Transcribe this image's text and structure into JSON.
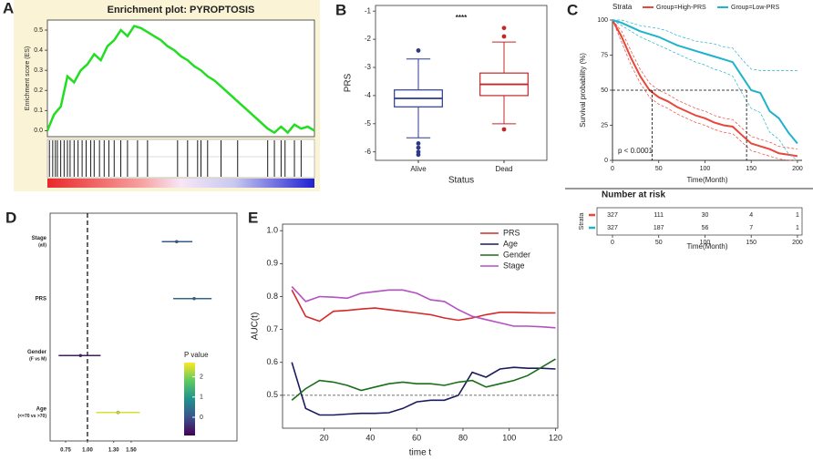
{
  "chart_data": [
    {
      "type": "gsea",
      "panel": "A",
      "title": "Enrichment plot: PYROPTOSIS",
      "ylabel": "Enrichment score (ES)",
      "x": [
        0,
        1,
        2,
        3,
        4,
        5,
        6,
        7,
        8,
        9,
        10,
        11,
        12,
        13,
        14,
        15,
        16,
        17,
        18,
        19,
        20,
        21,
        22,
        23,
        24,
        25,
        26,
        27,
        28,
        29,
        30,
        31,
        32,
        33,
        34,
        35,
        36,
        37,
        38,
        39,
        40
      ],
      "values": [
        0,
        0.08,
        0.12,
        0.27,
        0.24,
        0.3,
        0.33,
        0.38,
        0.35,
        0.42,
        0.45,
        0.5,
        0.47,
        0.52,
        0.51,
        0.49,
        0.47,
        0.45,
        0.42,
        0.4,
        0.37,
        0.35,
        0.32,
        0.3,
        0.27,
        0.25,
        0.22,
        0.19,
        0.16,
        0.13,
        0.1,
        0.07,
        0.04,
        0.01,
        -0.01,
        0.02,
        -0.01,
        0.03,
        0.01,
        0.02,
        0.0
      ],
      "color": "#22dd22",
      "xlim": [
        0,
        40
      ],
      "ylim": [
        -0.03,
        0.55
      ],
      "yticks": [
        {
          "value": 0,
          "label": "0.0"
        },
        0.1,
        0.2,
        0.3,
        0.4,
        0.5
      ],
      "hits": [
        0.3,
        0.8,
        1.2,
        1.5,
        2,
        2.5,
        3,
        3.4,
        4,
        4.6,
        5.2,
        5.8,
        6.5,
        7,
        7.8,
        8.5,
        9.2,
        10,
        11,
        12,
        13.5,
        15,
        19.5,
        21,
        22.5,
        23,
        24,
        26,
        28.5,
        33,
        34,
        35,
        35.6,
        37,
        38
      ]
    },
    {
      "type": "box",
      "panel": "B",
      "annotation": "****",
      "xlabel": "Status",
      "ylabel": "PRS",
      "categories": [
        "Alive",
        "Dead"
      ],
      "colors": [
        "#2e3a87",
        "#c0282a"
      ],
      "boxes": [
        {
          "min": -5.5,
          "q1": -4.4,
          "median": -4.1,
          "q3": -3.8,
          "max": -2.7,
          "outliers": [
            -2.4,
            -5.7,
            -5.85,
            -6.0,
            -6.1
          ]
        },
        {
          "min": -5.0,
          "q1": -4.0,
          "median": -3.6,
          "q3": -3.2,
          "max": -2.1,
          "outliers": [
            -1.6,
            -1.9,
            -5.2
          ]
        }
      ],
      "ylim": [
        -6.3,
        -0.8
      ],
      "yticks": [
        -6,
        -5,
        -4,
        -3,
        -2,
        -1
      ]
    },
    {
      "type": "survival",
      "panel": "C",
      "legend_title": "Strata",
      "xlabel": "Time(Month)",
      "ylabel": "Survival probability (%)",
      "annotation": "p < 0.0001",
      "xlim": [
        0,
        205
      ],
      "xticks": [
        0,
        50,
        100,
        150,
        200
      ],
      "ylim": [
        0,
        100
      ],
      "yticks": [
        0,
        25,
        50,
        75,
        100
      ],
      "series": [
        {
          "name": "Group=High-PRS",
          "color": "#e8473a",
          "x": [
            0,
            10,
            20,
            30,
            40,
            50,
            60,
            70,
            80,
            90,
            100,
            110,
            120,
            130,
            140,
            150,
            160,
            170,
            180,
            190,
            200
          ],
          "values": [
            100,
            88,
            73,
            60,
            50,
            45,
            42,
            38,
            35,
            32,
            30,
            27,
            25,
            24,
            18,
            12,
            10,
            8,
            5,
            4,
            3
          ],
          "lower": [
            100,
            84,
            68,
            55,
            45,
            40,
            37,
            33,
            30,
            27,
            25,
            22,
            20,
            19,
            13,
            7,
            5,
            3,
            1,
            0,
            0
          ],
          "upper": [
            100,
            92,
            78,
            65,
            55,
            50,
            47,
            43,
            40,
            37,
            35,
            32,
            30,
            29,
            23,
            17,
            15,
            13,
            10,
            9,
            8
          ]
        },
        {
          "name": "Group=Low-PRS",
          "color": "#1fb2cc",
          "x": [
            0,
            10,
            20,
            30,
            40,
            50,
            60,
            70,
            80,
            90,
            100,
            110,
            120,
            130,
            140,
            150,
            160,
            170,
            180,
            190,
            200
          ],
          "values": [
            100,
            98,
            95,
            92,
            90,
            88,
            85,
            82,
            80,
            78,
            76,
            74,
            72,
            70,
            60,
            50,
            48,
            35,
            30,
            20,
            12
          ],
          "lower": [
            100,
            96,
            92,
            88,
            85,
            82,
            79,
            76,
            73,
            70,
            68,
            65,
            63,
            60,
            48,
            37,
            34,
            20,
            15,
            5,
            0
          ],
          "upper": [
            100,
            100,
            98,
            96,
            95,
            94,
            92,
            89,
            87,
            85,
            84,
            83,
            81,
            80,
            72,
            65,
            64,
            64,
            64,
            64,
            64
          ]
        }
      ],
      "median_lines": {
        "y": 50,
        "x": [
          43,
          145
        ]
      },
      "risk_table": {
        "title": "Number at risk",
        "ylabel": "Strata",
        "xlabel": "Time(Month)",
        "series": [
          {
            "values": [
              327,
              111,
              30,
              4,
              1
            ]
          },
          {
            "values": [
              327,
              187,
              56,
              7,
              1
            ]
          }
        ]
      }
    },
    {
      "type": "forest",
      "panel": "D",
      "categories": [
        "Stage",
        "PRS",
        "Gender",
        "Age"
      ],
      "sublabels": [
        "(all)",
        null,
        "(F vs M)",
        "(<=70 vs >70)"
      ],
      "values": [
        2.02,
        2.22,
        0.92,
        1.35
      ],
      "lower": [
        1.85,
        1.98,
        0.67,
        1.1
      ],
      "upper": [
        2.2,
        2.42,
        1.15,
        1.6
      ],
      "pvalues": [
        0.1,
        0.3,
        -0.6,
        2.5
      ],
      "clim": [
        -0.9,
        2.7
      ],
      "colorbar_title": "P value",
      "colorbar_ticks": [
        0,
        1,
        2
      ],
      "xlim": [
        0.573,
        2.71
      ],
      "xticks": [
        0.75,
        {
          "value": 1,
          "label": "1.00"
        },
        {
          "value": 1.3,
          "label": "1.30"
        },
        {
          "value": 1.5,
          "label": "1.50"
        }
      ],
      "ref_line": 1
    },
    {
      "type": "line",
      "panel": "E",
      "xlabel": "time t",
      "ylabel": "AUC(t)",
      "x": [
        6,
        12,
        18,
        24,
        30,
        36,
        42,
        48,
        54,
        60,
        66,
        72,
        78,
        84,
        90,
        96,
        102,
        108,
        114,
        120
      ],
      "xlim": [
        2,
        121
      ],
      "xticks": [
        20,
        40,
        60,
        80,
        100,
        120
      ],
      "ylim": [
        0.4,
        1.02
      ],
      "yticks": [
        0.5,
        0.6,
        0.7,
        0.8,
        0.9,
        {
          "value": 1,
          "label": "1.0"
        }
      ],
      "ref_line": 0.5,
      "legend": "top-right",
      "series": [
        {
          "name": "PRS",
          "color": "#d42a2a",
          "values": [
            0.82,
            0.74,
            0.725,
            0.755,
            0.758,
            0.762,
            0.765,
            0.76,
            0.755,
            0.75,
            0.745,
            0.735,
            0.728,
            0.735,
            0.745,
            0.752,
            0.752,
            0.751,
            0.75,
            0.75
          ]
        },
        {
          "name": "Age",
          "color": "#1a1a5e",
          "values": [
            0.6,
            0.46,
            0.44,
            0.44,
            0.443,
            0.445,
            0.445,
            0.447,
            0.46,
            0.48,
            0.485,
            0.485,
            0.5,
            0.57,
            0.555,
            0.58,
            0.585,
            0.582,
            0.582,
            0.58
          ]
        },
        {
          "name": "Gender",
          "color": "#1a6e1a",
          "values": [
            0.485,
            0.52,
            0.545,
            0.54,
            0.53,
            0.515,
            0.525,
            0.535,
            0.54,
            0.535,
            0.535,
            0.53,
            0.54,
            0.545,
            0.525,
            0.535,
            0.545,
            0.56,
            0.585,
            0.61
          ]
        },
        {
          "name": "Stage",
          "color": "#b44fc4",
          "values": [
            0.83,
            0.785,
            0.8,
            0.798,
            0.795,
            0.81,
            0.815,
            0.82,
            0.82,
            0.81,
            0.79,
            0.785,
            0.76,
            0.74,
            0.73,
            0.72,
            0.71,
            0.71,
            0.708,
            0.705
          ]
        }
      ]
    }
  ]
}
